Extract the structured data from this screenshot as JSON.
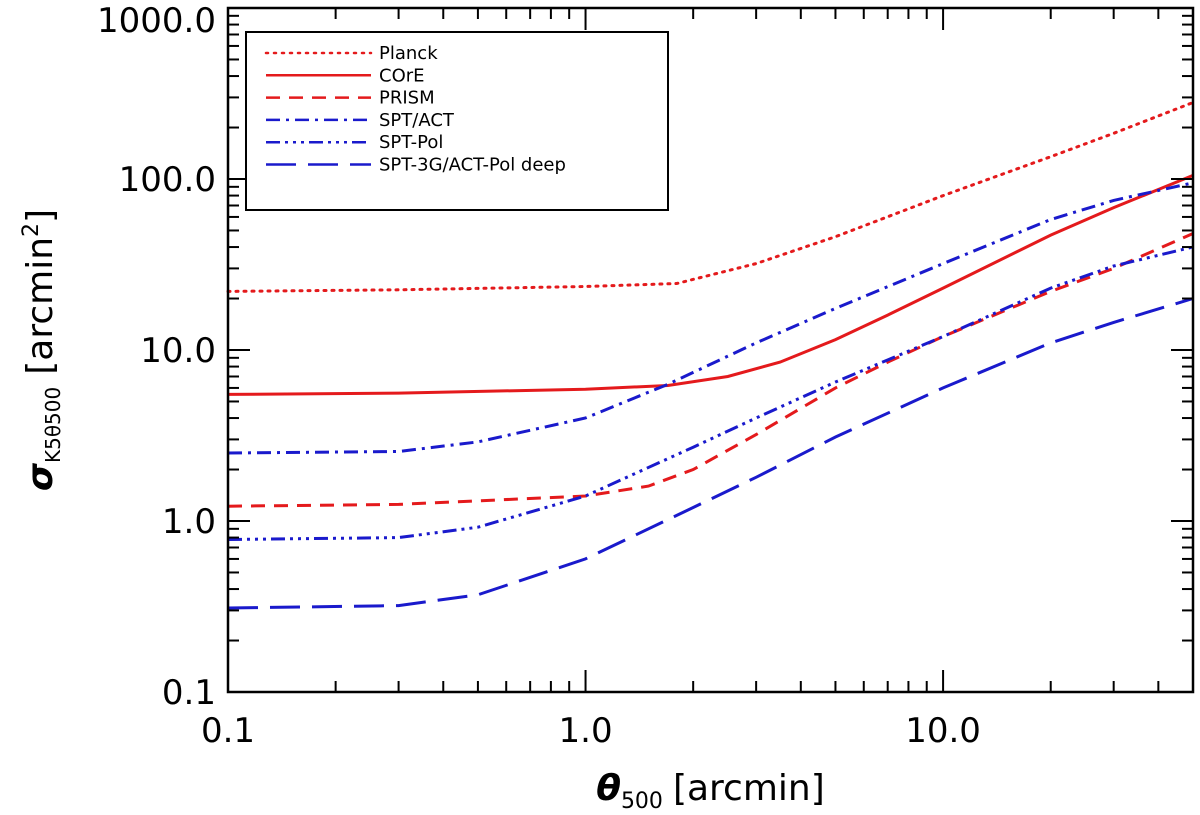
{
  "chart_data": {
    "type": "line",
    "title": "",
    "xlabel": {
      "symbol": "θ",
      "sub": "500",
      "unit": "[arcmin]"
    },
    "ylabel": {
      "symbol": "σ",
      "sub": "K5θ500",
      "unit": "[arcmin",
      "unit_sup": "2",
      "unit_close": "]"
    },
    "xscale": "log",
    "yscale": "log",
    "xlim": [
      0.1,
      50
    ],
    "ylim": [
      0.1,
      1000
    ],
    "xticks": [
      0.1,
      1.0,
      10.0
    ],
    "xtick_labels": [
      "0.1",
      "1.0",
      "10.0"
    ],
    "yticks": [
      0.1,
      1.0,
      10.0,
      100.0,
      1000.0
    ],
    "ytick_labels": [
      "0.1",
      "1.0",
      "10.0",
      "100.0",
      "1000.0"
    ],
    "grid": false,
    "legend_position": "top-left",
    "series": [
      {
        "name": "Planck",
        "color": "#e41a1c",
        "dash": "dotted",
        "x": [
          0.1,
          0.3,
          1.0,
          1.8,
          3.0,
          5.0,
          10.0,
          20.0,
          30.0,
          50.0
        ],
        "y": [
          22.0,
          22.5,
          23.5,
          24.5,
          32.0,
          46.0,
          80.0,
          135.0,
          185.0,
          280.0
        ]
      },
      {
        "name": "COrE",
        "color": "#e41a1c",
        "dash": "solid",
        "x": [
          0.1,
          0.3,
          1.0,
          1.7,
          2.5,
          3.5,
          5.0,
          7.0,
          10.0,
          20.0,
          30.0,
          50.0
        ],
        "y": [
          5.5,
          5.6,
          5.9,
          6.2,
          7.0,
          8.5,
          11.5,
          16.0,
          23.0,
          47.0,
          68.0,
          105.0
        ]
      },
      {
        "name": "PRISM",
        "color": "#e41a1c",
        "dash": "dashed",
        "x": [
          0.1,
          0.3,
          1.0,
          1.5,
          2.0,
          3.0,
          5.0,
          7.0,
          10.0,
          20.0,
          30.0,
          50.0
        ],
        "y": [
          1.22,
          1.25,
          1.4,
          1.6,
          2.0,
          3.2,
          6.0,
          8.5,
          12.0,
          22.0,
          30.0,
          48.0
        ]
      },
      {
        "name": "SPT/ACT",
        "color": "#1a1acc",
        "dash": "dashdot",
        "x": [
          0.1,
          0.3,
          0.5,
          1.0,
          1.7,
          3.0,
          5.0,
          10.0,
          20.0,
          30.0,
          50.0
        ],
        "y": [
          2.5,
          2.55,
          2.9,
          4.0,
          6.3,
          11.0,
          17.5,
          32.0,
          58.0,
          75.0,
          95.0
        ]
      },
      {
        "name": "SPT-Pol",
        "color": "#1a1acc",
        "dash": "dashdotdotdot",
        "x": [
          0.1,
          0.3,
          0.5,
          1.0,
          2.0,
          3.0,
          5.0,
          10.0,
          20.0,
          30.0,
          50.0
        ],
        "y": [
          0.78,
          0.8,
          0.92,
          1.4,
          2.7,
          4.0,
          6.5,
          12.0,
          23.0,
          31.0,
          40.0
        ]
      },
      {
        "name": "SPT-3G/ACT-Pol deep",
        "color": "#1a1acc",
        "dash": "longdash",
        "x": [
          0.1,
          0.3,
          0.5,
          1.0,
          2.0,
          3.0,
          5.0,
          10.0,
          20.0,
          30.0,
          50.0
        ],
        "y": [
          0.31,
          0.32,
          0.37,
          0.6,
          1.2,
          1.8,
          3.1,
          6.0,
          11.0,
          14.5,
          20.0
        ]
      }
    ]
  }
}
